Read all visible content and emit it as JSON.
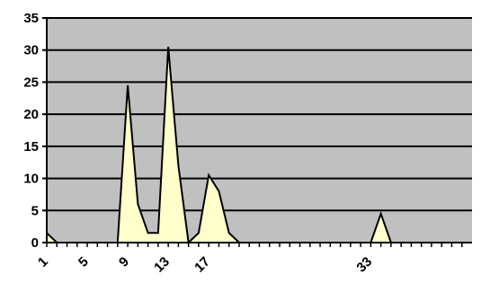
{
  "chart_data": {
    "type": "area",
    "title": "",
    "xlabel": "",
    "ylabel": "",
    "x": [
      1,
      2,
      3,
      4,
      5,
      6,
      7,
      8,
      9,
      10,
      11,
      12,
      13,
      14,
      15,
      16,
      17,
      18,
      19,
      20,
      21,
      22,
      23,
      24,
      25,
      26,
      27,
      28,
      29,
      30,
      31,
      32,
      33,
      34,
      35,
      36,
      37,
      38,
      39,
      40,
      41,
      42
    ],
    "values": [
      1.5,
      0,
      0,
      0,
      0,
      0,
      0,
      0,
      24.5,
      6,
      1.5,
      1.5,
      30.5,
      12,
      0,
      1.5,
      10.5,
      8,
      1.5,
      0,
      0,
      0,
      0,
      0,
      0,
      0,
      0,
      0,
      0,
      0,
      0,
      0,
      0,
      4.5,
      0,
      0,
      0,
      0,
      0,
      0,
      0,
      0
    ],
    "x_tick_labels": [
      "1",
      "5",
      "9",
      "13",
      "17",
      "33"
    ],
    "x_tick_label_positions": [
      1,
      5,
      9,
      13,
      17,
      33
    ],
    "y_tick_labels": [
      "0",
      "5",
      "10",
      "15",
      "20",
      "25",
      "30",
      "35"
    ],
    "ylim": [
      0,
      35
    ],
    "grid": true,
    "colors": {
      "plot_background": "#c0c0c0",
      "area_fill": "#ffffcc",
      "area_stroke": "#000000",
      "gridline": "#000000"
    }
  }
}
